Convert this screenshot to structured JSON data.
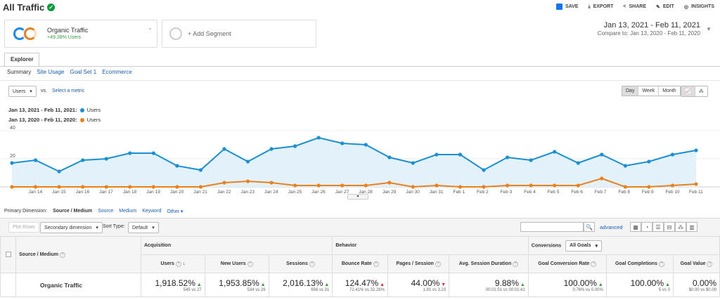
{
  "header": {
    "title": "All Traffic",
    "actions": [
      "SAVE",
      "EXPORT",
      "SHARE",
      "EDIT",
      "INSIGHTS"
    ]
  },
  "segment": {
    "name": "Organic Traffic",
    "stat": "+49.28% Users",
    "add_label": "+ Add Segment"
  },
  "date_range": {
    "main": "Jan 13, 2021 - Feb 11, 2021",
    "compare_label": "Compare to:",
    "compare": "Jan 13, 2020 - Feb 11, 2020"
  },
  "tabs": {
    "explorer": "Explorer"
  },
  "subtabs": [
    "Summary",
    "Site Usage",
    "Goal Set 1",
    "Ecommerce"
  ],
  "chart_controls": {
    "metric": "Users",
    "vs": "vs.",
    "select_metric": "Select a metric",
    "periods": [
      "Day",
      "Week",
      "Month"
    ]
  },
  "legend": [
    {
      "label": "Jan 13, 2021 - Feb 11, 2021:",
      "series": "Users",
      "color": "#1a8fd1"
    },
    {
      "label": "Jan 13, 2020 - Feb 11, 2020:",
      "series": "Users",
      "color": "#e8821f"
    }
  ],
  "chart_data": {
    "type": "line",
    "ylim": [
      0,
      40
    ],
    "y_ticks": [
      "40",
      "20"
    ],
    "x_labels": [
      "Jan 14",
      "Jan 15",
      "Jan 16",
      "Jan 17",
      "Jan 18",
      "Jan 19",
      "Jan 20",
      "Jan 21",
      "Jan 22",
      "Jan 23",
      "Jan 24",
      "Jan 25",
      "Jan 26",
      "Jan 27",
      "Jan 28",
      "Jan 29",
      "Jan 30",
      "Jan 31",
      "Feb 1",
      "Feb 2",
      "Feb 3",
      "Feb 4",
      "Feb 5",
      "Feb 6",
      "Feb 7",
      "Feb 8",
      "Feb 9",
      "Feb 10",
      "Feb 11"
    ],
    "series": [
      {
        "values": [
          17,
          19,
          11,
          19,
          20,
          24,
          24,
          15,
          12,
          27,
          18,
          27,
          29,
          35,
          31,
          30,
          21,
          17,
          23,
          23,
          12,
          21,
          19,
          25,
          17,
          23,
          15,
          18,
          23,
          26
        ]
      },
      {
        "values": [
          0,
          0,
          0,
          0,
          0,
          0,
          0,
          0,
          0,
          3,
          4,
          3,
          1,
          1,
          1,
          1,
          3,
          0,
          1,
          0,
          0,
          1,
          1,
          1,
          1,
          6,
          0,
          0,
          1,
          2
        ]
      }
    ]
  },
  "primary_dimension": {
    "label": "Primary Dimension:",
    "items": [
      "Source / Medium",
      "Source",
      "Medium",
      "Keyword",
      "Other"
    ]
  },
  "table_controls": {
    "plot_rows": "Plot Rows",
    "secondary": "Secondary dimension",
    "sort_label": "Sort Type:",
    "sort_value": "Default",
    "advanced": "advanced"
  },
  "table": {
    "dim_header": "Source / Medium",
    "groups": [
      "Acquisition",
      "Behavior",
      "Conversions"
    ],
    "goals_select": "All Goals",
    "columns": [
      "Users",
      "New Users",
      "Sessions",
      "Bounce Rate",
      "Pages / Session",
      "Avg. Session Duration",
      "Goal Conversion Rate",
      "Goal Completions",
      "Goal Value"
    ],
    "row": {
      "name": "Organic Traffic",
      "values": [
        "1,918.52%",
        "1,953.85%",
        "2,016.13%",
        "124.47%",
        "44.00%",
        "9.88%",
        "100.00%",
        "100.00%",
        "0.00%"
      ],
      "subs": [
        "545 vs 27",
        "534 vs 26",
        "656 vs 31",
        "72.41% vs 32.26%",
        "1.81 vs 3.23",
        "00:01:51 vs 00:01:41",
        "0.76% vs 0.00%",
        "5 vs 0",
        "$0.00 vs $0.00"
      ]
    }
  }
}
